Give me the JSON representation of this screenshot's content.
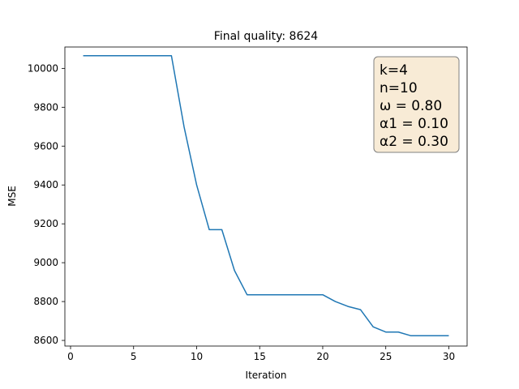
{
  "chart_data": {
    "type": "line",
    "title": "Final quality: 8624",
    "xlabel": "Iteration",
    "ylabel": "MSE",
    "xlim": [
      -0.45,
      31.45
    ],
    "ylim": [
      8571,
      10110
    ],
    "x_ticks": [
      0,
      5,
      10,
      15,
      20,
      25,
      30
    ],
    "y_ticks": [
      8600,
      8800,
      9000,
      9200,
      9400,
      9600,
      9800,
      10000
    ],
    "grid": false,
    "series": [
      {
        "color": "#1f77b4",
        "x": [
          1,
          2,
          3,
          4,
          5,
          6,
          7,
          8,
          9,
          10,
          11,
          12,
          13,
          14,
          15,
          16,
          17,
          18,
          19,
          20,
          21,
          22,
          23,
          24,
          25,
          26,
          27,
          28,
          29,
          30
        ],
        "y": [
          10065,
          10065,
          10065,
          10065,
          10065,
          10065,
          10065,
          10065,
          9700,
          9400,
          9170,
          9170,
          8960,
          8835,
          8835,
          8835,
          8835,
          8835,
          8835,
          8835,
          8800,
          8775,
          8758,
          8670,
          8643,
          8643,
          8624,
          8624,
          8624,
          8624
        ]
      }
    ],
    "annotation": {
      "placement": "top-right",
      "lines": [
        "k=4",
        "n=10",
        "ω = 0.80",
        "α1 = 0.10",
        "α2 = 0.30"
      ],
      "facecolor": "#f8ebd6",
      "edgecolor": "#808080"
    }
  }
}
